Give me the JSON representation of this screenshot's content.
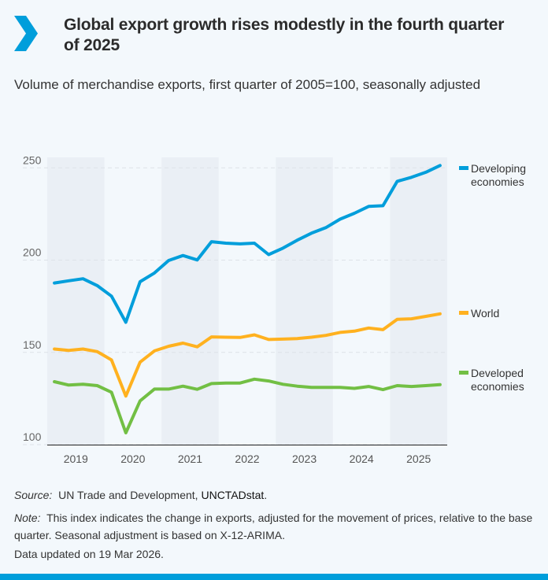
{
  "header": {
    "title": "Global export growth rises modestly in the fourth quarter of 2025",
    "subtitle": "Volume of merchandise exports, first quarter of 2005=100, seasonally adjusted",
    "logo_icon": "chevron-right-icon",
    "accent_color": "#009edb"
  },
  "chart_data": {
    "type": "line",
    "title": "Global export growth rises modestly in the fourth quarter of 2025",
    "subtitle": "Volume of merchandise exports, first quarter of 2005=100, seasonally adjusted",
    "x": [
      "2019Q1",
      "2019Q2",
      "2019Q3",
      "2019Q4",
      "2020Q1",
      "2020Q2",
      "2020Q3",
      "2020Q4",
      "2021Q1",
      "2021Q2",
      "2021Q3",
      "2021Q4",
      "2022Q1",
      "2022Q2",
      "2022Q3",
      "2022Q4",
      "2023Q1",
      "2023Q2",
      "2023Q3",
      "2023Q4",
      "2024Q1",
      "2024Q2",
      "2024Q3",
      "2024Q4",
      "2025Q1",
      "2025Q2",
      "2025Q3",
      "2025Q4"
    ],
    "x_tick_labels": [
      "2019",
      "2020",
      "2021",
      "2022",
      "2023",
      "2024",
      "2025"
    ],
    "y_ticks": [
      100,
      150,
      200,
      250
    ],
    "ylim": [
      100,
      250
    ],
    "grid": "horizontal dashed",
    "alternating_year_shading": true,
    "legend_placement": "right",
    "series": [
      {
        "name": "Developing economies",
        "color": "#009edb",
        "values": [
          187.6,
          188.8,
          189.9,
          186.2,
          180.5,
          166.3,
          188.3,
          193.0,
          199.8,
          202.5,
          200.1,
          210.0,
          209.2,
          208.8,
          209.2,
          203.0,
          206.5,
          210.8,
          214.6,
          217.6,
          222.2,
          225.4,
          229.1,
          229.5,
          242.7,
          244.9,
          247.6,
          251.3
        ]
      },
      {
        "name": "World",
        "color": "#ffb11f",
        "values": [
          151.8,
          151.1,
          151.8,
          150.4,
          145.9,
          126.3,
          144.7,
          150.8,
          153.3,
          155.0,
          153.0,
          158.4,
          158.2,
          158.1,
          159.5,
          157.0,
          157.2,
          157.5,
          158.2,
          159.2,
          160.8,
          161.5,
          163.2,
          162.3,
          167.9,
          168.2,
          169.5,
          170.9
        ]
      },
      {
        "name": "Developed economies",
        "color": "#72bf44",
        "values": [
          134.1,
          132.3,
          132.7,
          132.0,
          128.4,
          106.4,
          123.7,
          130.1,
          130.1,
          131.7,
          130.0,
          133.1,
          133.4,
          133.4,
          135.5,
          134.5,
          132.7,
          131.7,
          131.0,
          131.0,
          131.0,
          130.5,
          131.5,
          129.8,
          132.0,
          131.5,
          132.0,
          132.5
        ]
      }
    ]
  },
  "legend": {
    "developing": [
      "Developing",
      "economies"
    ],
    "world": [
      "World"
    ],
    "developed": [
      "Developed",
      "economies"
    ]
  },
  "footer": {
    "source_label": "Source:",
    "source_text": "UN Trade and Development, ",
    "source_link": "UNCTADstat",
    "source_end": ".",
    "note_label": "Note:",
    "note_text": "This index indicates the change in exports, adjusted for the movement of prices, relative to the base quarter. Seasonal adjustment is based on X-12-ARIMA.",
    "updated": "Data updated on 19 Mar 2026."
  }
}
